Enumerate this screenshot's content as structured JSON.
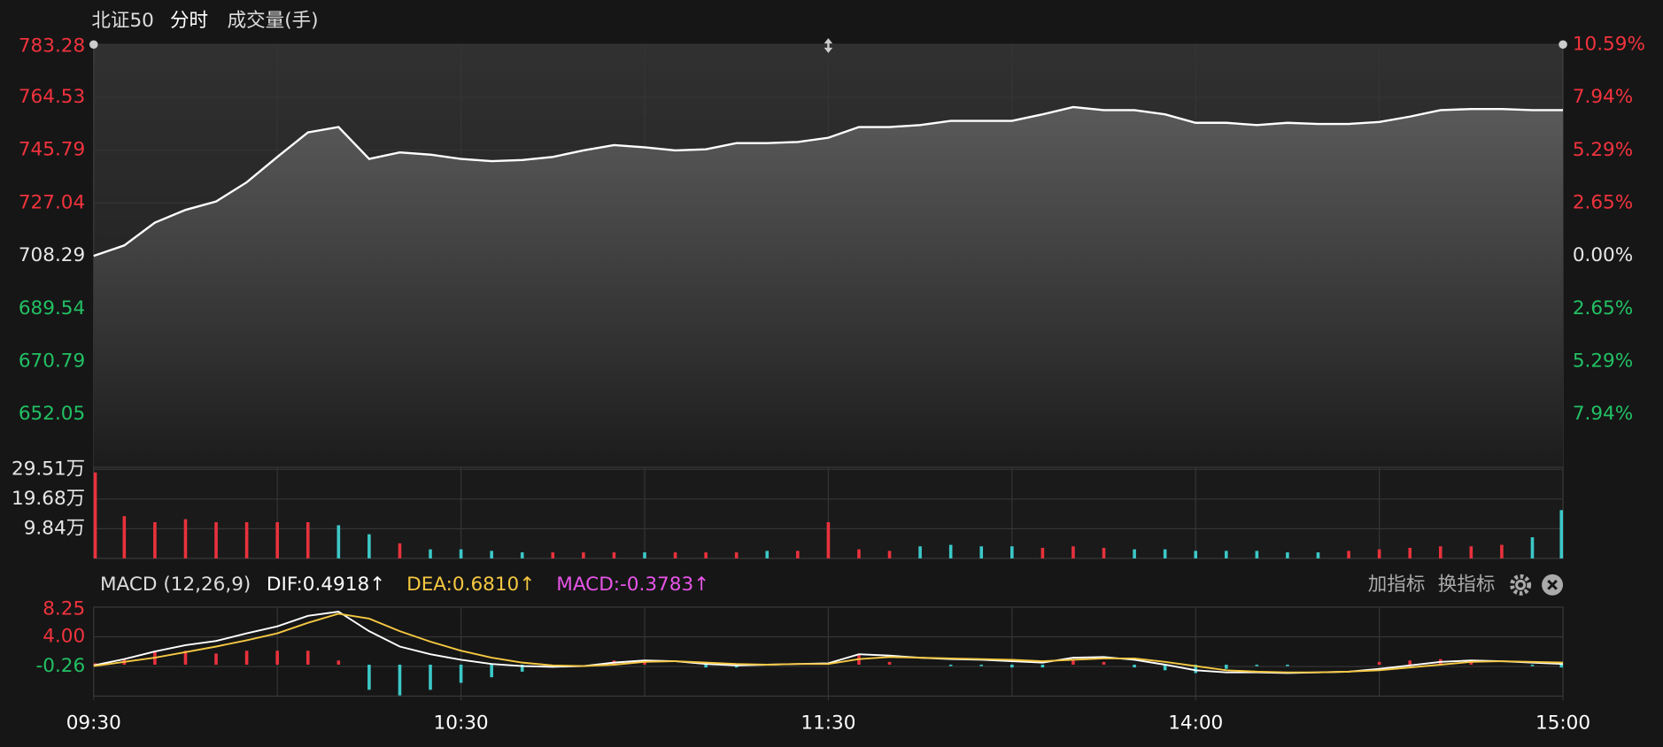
{
  "buttons": [
    "加指标",
    "换指标"
  ],
  "chart_data": [
    {
      "type": "area",
      "title": "北证50",
      "subtitle": "分时",
      "x": [
        0,
        5,
        10,
        15,
        20,
        25,
        30,
        35,
        40,
        45,
        50,
        55,
        60,
        65,
        70,
        75,
        80,
        85,
        90,
        95,
        100,
        105,
        110,
        115,
        120,
        125,
        130,
        135,
        140,
        145,
        150,
        155,
        160,
        165,
        170,
        175,
        180,
        185,
        190,
        195,
        200,
        205,
        210,
        215,
        220,
        225,
        230,
        235,
        240
      ],
      "series": [
        {
          "name": "北证50",
          "color": "#ffffff",
          "values": [
            708.29,
            712.0,
            720.1,
            724.6,
            727.6,
            734.4,
            743.4,
            752.1,
            754.0,
            742.7,
            745.0,
            744.2,
            742.7,
            741.9,
            742.3,
            743.4,
            745.7,
            747.6,
            746.8,
            745.7,
            746.1,
            748.3,
            748.3,
            748.7,
            750.2,
            754.0,
            754.0,
            754.7,
            756.2,
            756.2,
            756.2,
            758.5,
            761.1,
            760.0,
            760.0,
            758.5,
            755.5,
            755.5,
            754.7,
            755.5,
            755.1,
            755.1,
            755.8,
            757.7,
            760.0,
            760.4,
            760.4,
            760.0,
            760.0
          ]
        }
      ],
      "xlim": [
        0,
        240
      ],
      "xgrid": [
        30,
        60,
        90,
        120,
        150,
        180,
        210
      ],
      "ylim": [
        633.3,
        783.28
      ],
      "yticks": [
        783.28,
        764.53,
        745.79,
        727.04,
        708.29,
        689.54,
        670.79,
        652.05
      ],
      "y2lim": [
        -10.59,
        10.59
      ],
      "y2ticks": [
        {
          "value": 10.59,
          "label": "10.59%"
        },
        {
          "value": 7.94,
          "label": "7.94%"
        },
        {
          "value": 5.29,
          "label": "5.29%"
        },
        {
          "value": 2.65,
          "label": "2.65%"
        },
        {
          "value": 0,
          "label": "0.00%"
        },
        {
          "value": -2.65,
          "label": "2.65%"
        },
        {
          "value": -5.29,
          "label": "5.29%"
        },
        {
          "value": -7.94,
          "label": "7.94%"
        }
      ],
      "grid": true
    },
    {
      "type": "bar",
      "title": "成交量(手)",
      "x": [
        0,
        5,
        10,
        15,
        20,
        25,
        30,
        35,
        40,
        45,
        50,
        55,
        60,
        65,
        70,
        75,
        80,
        85,
        90,
        95,
        100,
        105,
        110,
        115,
        120,
        125,
        130,
        135,
        140,
        145,
        150,
        155,
        160,
        165,
        170,
        175,
        180,
        185,
        190,
        195,
        200,
        205,
        210,
        215,
        220,
        225,
        230,
        235,
        240
      ],
      "values": [
        28.5,
        14,
        12,
        13,
        12,
        12,
        12,
        12,
        11,
        8,
        5,
        3,
        3,
        2.5,
        2,
        2,
        2,
        2,
        2,
        2,
        2,
        2,
        2.5,
        2.5,
        12,
        3,
        2.5,
        4,
        4.5,
        4,
        4,
        3.5,
        4,
        3.5,
        3,
        3,
        2.5,
        2.5,
        2.5,
        2,
        2,
        2.5,
        3,
        3.5,
        4,
        4,
        4.5,
        7,
        16
      ],
      "colors": [
        "#e8323c",
        "#e8323c",
        "#e8323c",
        "#e8323c",
        "#e8323c",
        "#e8323c",
        "#e8323c",
        "#e8323c",
        "#3cc8c8",
        "#3cc8c8",
        "#e8323c",
        "#3cc8c8",
        "#3cc8c8",
        "#3cc8c8",
        "#3cc8c8",
        "#e8323c",
        "#e8323c",
        "#e8323c",
        "#3cc8c8",
        "#e8323c",
        "#e8323c",
        "#e8323c",
        "#3cc8c8",
        "#e8323c",
        "#e8323c",
        "#e8323c",
        "#e8323c",
        "#3cc8c8",
        "#3cc8c8",
        "#3cc8c8",
        "#3cc8c8",
        "#e8323c",
        "#e8323c",
        "#e8323c",
        "#3cc8c8",
        "#3cc8c8",
        "#3cc8c8",
        "#3cc8c8",
        "#3cc8c8",
        "#3cc8c8",
        "#3cc8c8",
        "#e8323c",
        "#e8323c",
        "#e8323c",
        "#e8323c",
        "#e8323c",
        "#e8323c",
        "#3cc8c8",
        "#3cc8c8"
      ],
      "xlim": [
        0,
        240
      ],
      "xgrid": [
        30,
        60,
        90,
        120,
        150,
        180,
        210
      ],
      "ylim": [
        0,
        30.21
      ],
      "yticks": [
        {
          "value": 29.51,
          "label": "29.51万"
        },
        {
          "value": 19.68,
          "label": "19.68万"
        },
        {
          "value": 9.84,
          "label": "9.84万"
        }
      ],
      "grid": true
    },
    {
      "type": "line",
      "title": "MACD (12,26,9)",
      "x": [
        0,
        5,
        10,
        15,
        20,
        25,
        30,
        35,
        40,
        45,
        50,
        55,
        60,
        65,
        70,
        75,
        80,
        85,
        90,
        95,
        100,
        105,
        110,
        115,
        120,
        125,
        130,
        135,
        140,
        145,
        150,
        155,
        160,
        165,
        170,
        175,
        180,
        185,
        190,
        195,
        200,
        205,
        210,
        215,
        220,
        225,
        230,
        235,
        240
      ],
      "series": [
        {
          "name": "DIF:0.4918↑",
          "color": "#ffffff",
          "values": [
            -0.1,
            0.8,
            1.9,
            2.8,
            3.4,
            4.5,
            5.5,
            7.0,
            7.6,
            4.8,
            2.6,
            1.5,
            0.7,
            0.1,
            -0.2,
            -0.3,
            -0.2,
            0.3,
            0.6,
            0.5,
            0.1,
            -0.1,
            0.0,
            0.1,
            0.2,
            1.5,
            1.3,
            1.0,
            0.8,
            0.7,
            0.5,
            0.3,
            1.0,
            1.1,
            0.7,
            0.0,
            -0.8,
            -1.1,
            -1.1,
            -1.2,
            -1.1,
            -1.0,
            -0.6,
            -0.1,
            0.4,
            0.6,
            0.5,
            0.3,
            0.1
          ]
        },
        {
          "name": "DEA:0.6810↑",
          "color": "#f5c842",
          "values": [
            -0.2,
            0.4,
            1.0,
            1.8,
            2.6,
            3.5,
            4.5,
            6.0,
            7.3,
            6.6,
            4.8,
            3.3,
            2.0,
            1.0,
            0.3,
            -0.1,
            -0.2,
            0.0,
            0.4,
            0.5,
            0.3,
            0.1,
            0.0,
            0.1,
            0.1,
            0.8,
            1.1,
            1.0,
            0.9,
            0.8,
            0.7,
            0.5,
            0.7,
            0.9,
            0.9,
            0.4,
            -0.2,
            -0.8,
            -1.0,
            -1.1,
            -1.1,
            -1.0,
            -0.8,
            -0.4,
            0.0,
            0.4,
            0.5,
            0.4,
            0.3
          ]
        },
        {
          "name": "MACD:-0.3783↑",
          "color": "#e855e8",
          "type": "bar",
          "values": [
            0.2,
            0.8,
            1.8,
            2.0,
            1.6,
            2.0,
            2.0,
            2.0,
            0.6,
            -3.6,
            -4.4,
            -3.6,
            -2.6,
            -1.8,
            -1.0,
            -0.4,
            0.0,
            0.6,
            0.4,
            0.0,
            -0.4,
            -0.4,
            0.0,
            0.0,
            0.2,
            1.4,
            0.4,
            0.0,
            -0.2,
            -0.2,
            -0.4,
            -0.4,
            0.6,
            0.4,
            -0.4,
            -0.8,
            -1.2,
            -0.6,
            -0.2,
            -0.2,
            0.0,
            0.0,
            0.4,
            0.6,
            0.8,
            0.4,
            0.0,
            -0.2,
            -0.4
          ]
        }
      ],
      "up_color": "#e8323c",
      "down_color": "#3cc8c8",
      "xlim": [
        0,
        240
      ],
      "xgrid": [
        30,
        60,
        90,
        120,
        150,
        180,
        210
      ],
      "xticks": [
        {
          "value": 0,
          "label": "09:30"
        },
        {
          "value": 60,
          "label": "10:30"
        },
        {
          "value": 120,
          "label": "11:30"
        },
        {
          "value": 180,
          "label": "14:00"
        },
        {
          "value": 240,
          "label": "15:00"
        }
      ],
      "ylim": [
        -4.51,
        8.25
      ],
      "yticks": [
        8.25,
        {
          "value": 4,
          "label": "4.00"
        },
        -0.26
      ],
      "grid": true
    }
  ]
}
